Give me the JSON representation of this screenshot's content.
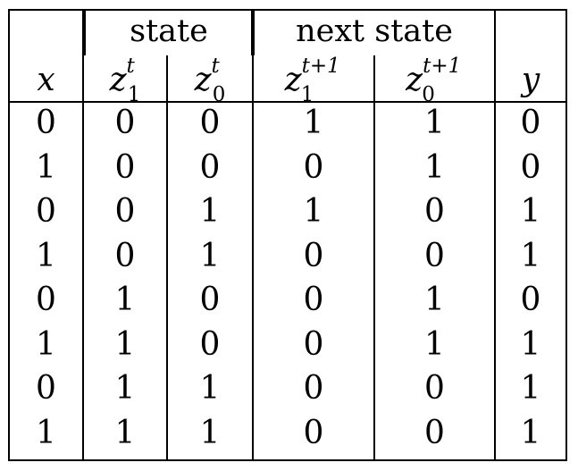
{
  "groups": {
    "state": "state",
    "next_state": "next state"
  },
  "columns": [
    {
      "base": "x",
      "sub": "",
      "sup": ""
    },
    {
      "base": "z",
      "sub": "1",
      "sup": "t"
    },
    {
      "base": "z",
      "sub": "0",
      "sup": "t"
    },
    {
      "base": "z",
      "sub": "1",
      "sup": "t+1"
    },
    {
      "base": "z",
      "sub": "0",
      "sup": "t+1"
    },
    {
      "base": "y",
      "sub": "",
      "sup": ""
    }
  ],
  "rows": [
    [
      "0",
      "0",
      "0",
      "1",
      "1",
      "0"
    ],
    [
      "1",
      "0",
      "0",
      "0",
      "1",
      "0"
    ],
    [
      "0",
      "0",
      "1",
      "1",
      "0",
      "1"
    ],
    [
      "1",
      "0",
      "1",
      "0",
      "0",
      "1"
    ],
    [
      "0",
      "1",
      "0",
      "0",
      "1",
      "0"
    ],
    [
      "1",
      "1",
      "0",
      "0",
      "1",
      "1"
    ],
    [
      "0",
      "1",
      "1",
      "0",
      "0",
      "1"
    ],
    [
      "1",
      "1",
      "1",
      "0",
      "0",
      "1"
    ]
  ]
}
